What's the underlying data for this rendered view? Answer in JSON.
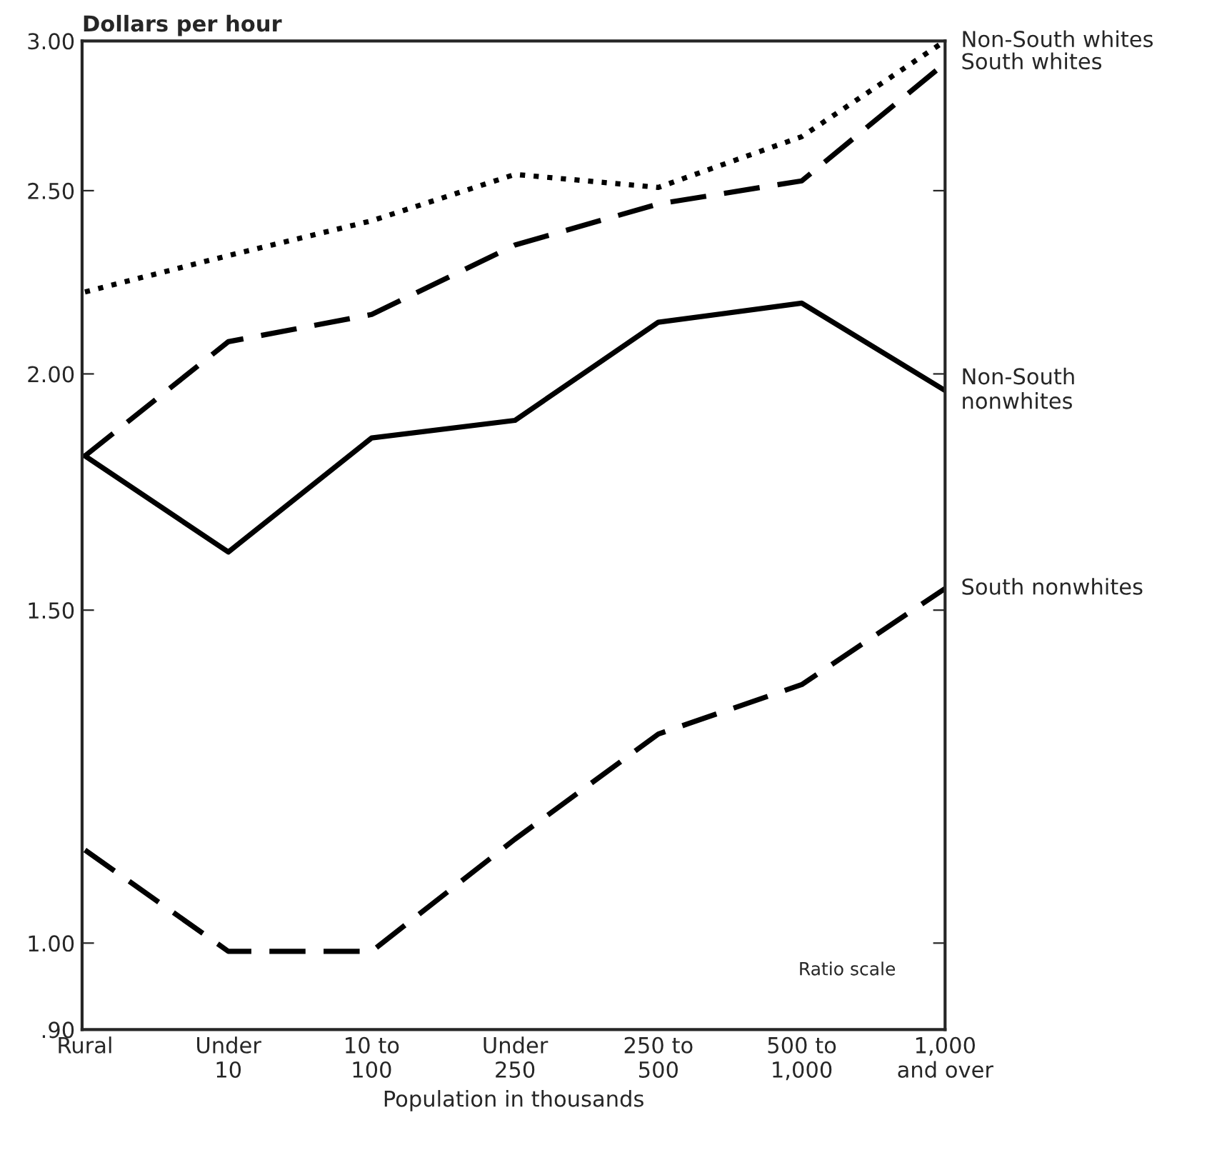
{
  "chart_data": {
    "type": "line",
    "ylabel": "Dollars per hour",
    "xlabel": "Population in thousands",
    "categories": [
      "Rural",
      "Under\n10",
      "10 to\n100",
      "Under\n250",
      "250 to\n500",
      "500 to\n1,000",
      "1,000\nand over"
    ],
    "log": true,
    "ylim": [
      0.9,
      3.0
    ],
    "yticks": [
      {
        "value": 0.9,
        "label": ".90"
      },
      {
        "value": 1.0,
        "label": "1.00"
      },
      {
        "value": 1.5,
        "label": "1.50"
      },
      {
        "value": 2.0,
        "label": "2.00"
      },
      {
        "value": 2.5,
        "label": "2.50"
      },
      {
        "value": 3.0,
        "label": "3.00"
      }
    ],
    "grid": false,
    "legend": false,
    "marker": "none",
    "series": [
      {
        "name": "Non-South whites",
        "color": "#000000",
        "line_style": "dotted",
        "values": [
          2.21,
          2.31,
          2.41,
          2.55,
          2.51,
          2.67,
          3.0
        ]
      },
      {
        "name": "South whites",
        "color": "#000000",
        "line_style": "dashed",
        "values": [
          1.81,
          2.08,
          2.15,
          2.34,
          2.46,
          2.53,
          2.92
        ]
      },
      {
        "name": "Non-South\nnonwhites",
        "color": "#000000",
        "line_style": "solid",
        "values": [
          1.81,
          1.61,
          1.85,
          1.89,
          2.13,
          2.18,
          1.96
        ]
      },
      {
        "name": "South nonwhites",
        "color": "#000000",
        "line_style": "dashed",
        "values": [
          1.12,
          0.99,
          0.99,
          1.135,
          1.29,
          1.37,
          1.54
        ]
      }
    ],
    "annotations": [
      "Ratio scale"
    ]
  }
}
